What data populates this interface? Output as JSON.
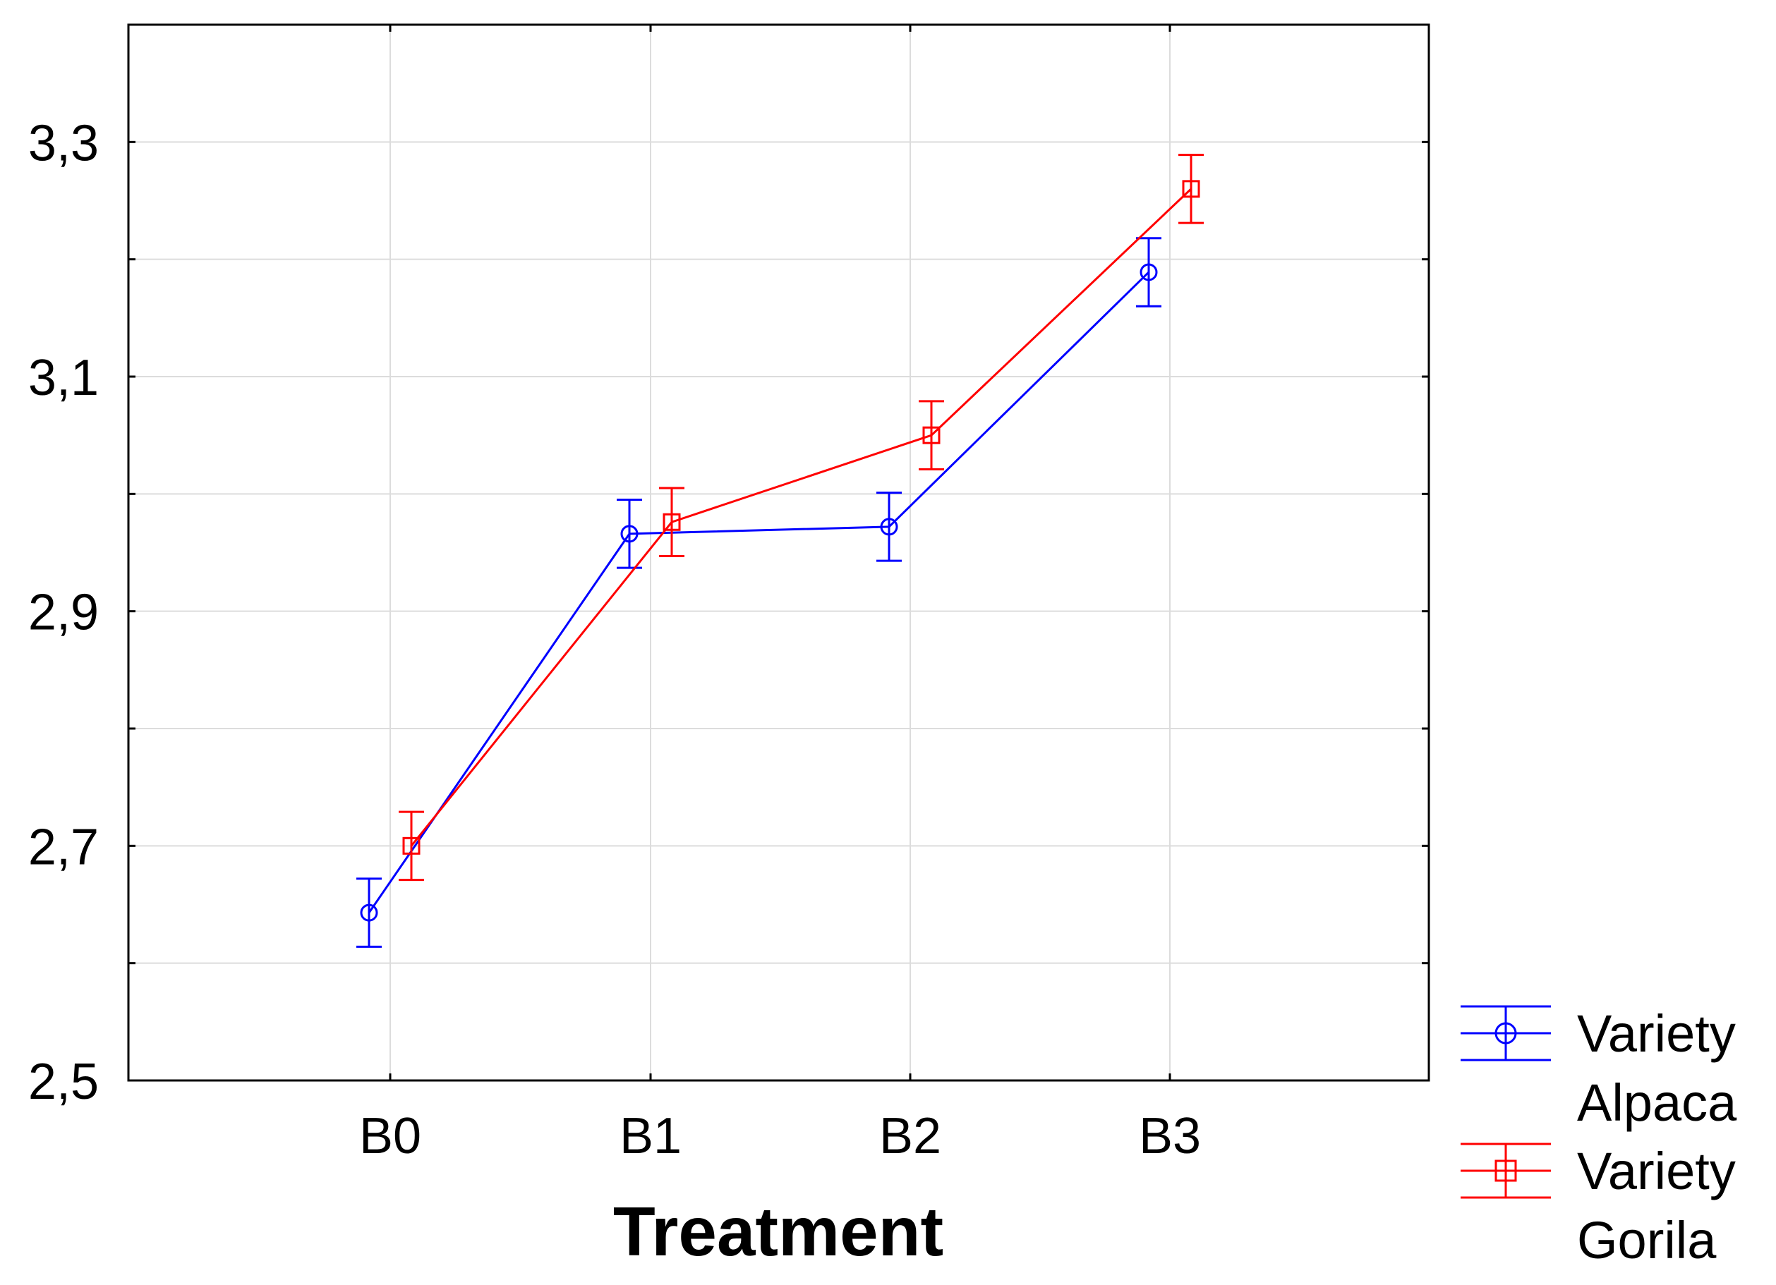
{
  "chart_data": {
    "type": "line",
    "title": "",
    "xlabel": "Treatment",
    "ylabel": "",
    "categories": [
      "B0",
      "B1",
      "B2",
      "B3"
    ],
    "ylim": [
      2.5,
      3.4
    ],
    "y_ticks": [
      2.5,
      2.7,
      2.9,
      3.1,
      3.3
    ],
    "y_tick_labels": [
      "2,5",
      "2,7",
      "2,9",
      "3,1",
      "3,3"
    ],
    "grid": true,
    "legend_position": "bottom-right outside",
    "series": [
      {
        "name": "Variety Alpaca",
        "name_lines": [
          "Variety",
          "Alpaca"
        ],
        "color": "#0000ff",
        "marker": "circle",
        "values": [
          2.643,
          2.966,
          2.972,
          3.189
        ],
        "error": [
          0.029,
          0.029,
          0.029,
          0.029
        ]
      },
      {
        "name": "Variety Gorila",
        "name_lines": [
          "Variety",
          "Gorila"
        ],
        "color": "#ff0000",
        "marker": "square",
        "values": [
          2.7,
          2.976,
          3.05,
          3.26
        ],
        "error": [
          0.029,
          0.029,
          0.029,
          0.029
        ]
      }
    ]
  }
}
